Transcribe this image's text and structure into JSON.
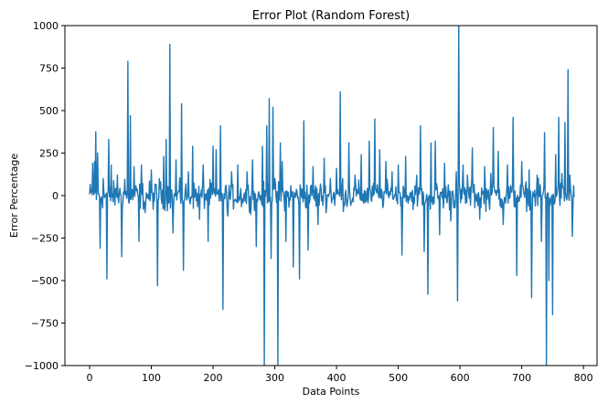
{
  "chart_data": {
    "type": "line",
    "title": "Error Plot (Random Forest)",
    "xlabel": "Data Points",
    "ylabel": "Error Percentage",
    "xlim": [
      -40,
      822
    ],
    "ylim": [
      -1000,
      1000
    ],
    "xticks": [
      0,
      100,
      200,
      300,
      400,
      500,
      600,
      700,
      800
    ],
    "yticks": [
      -1000,
      -750,
      -500,
      -250,
      0,
      250,
      500,
      750,
      1000
    ],
    "xtick_labels": [
      "0",
      "100",
      "200",
      "300",
      "400",
      "500",
      "600",
      "700",
      "800"
    ],
    "ytick_labels": [
      "−1000",
      "−750",
      "−500",
      "−250",
      "0",
      "250",
      "500",
      "750",
      "1000"
    ],
    "grid": false,
    "legend": "none",
    "series": [
      {
        "color": "#1f77b4",
        "x_start": 0,
        "x_step": 1,
        "noise_amplitude": 60,
        "n_points": 786,
        "spikes": [
          [
            5,
            190
          ],
          [
            8,
            200
          ],
          [
            10,
            375
          ],
          [
            13,
            250
          ],
          [
            17,
            -310
          ],
          [
            22,
            100
          ],
          [
            28,
            -490
          ],
          [
            31,
            330
          ],
          [
            35,
            180
          ],
          [
            45,
            120
          ],
          [
            52,
            -360
          ],
          [
            57,
            95
          ],
          [
            62,
            790
          ],
          [
            66,
            470
          ],
          [
            72,
            170
          ],
          [
            80,
            -270
          ],
          [
            84,
            180
          ],
          [
            90,
            -100
          ],
          [
            100,
            150
          ],
          [
            110,
            -530
          ],
          [
            113,
            100
          ],
          [
            120,
            230
          ],
          [
            124,
            330
          ],
          [
            130,
            890
          ],
          [
            135,
            -220
          ],
          [
            140,
            210
          ],
          [
            149,
            540
          ],
          [
            152,
            -440
          ],
          [
            160,
            140
          ],
          [
            167,
            290
          ],
          [
            178,
            -140
          ],
          [
            184,
            180
          ],
          [
            192,
            -270
          ],
          [
            200,
            290
          ],
          [
            205,
            270
          ],
          [
            212,
            410
          ],
          [
            216,
            -670
          ],
          [
            224,
            -120
          ],
          [
            230,
            140
          ],
          [
            240,
            180
          ],
          [
            255,
            140
          ],
          [
            264,
            210
          ],
          [
            270,
            -300
          ],
          [
            280,
            290
          ],
          [
            283,
            -1000
          ],
          [
            287,
            410
          ],
          [
            291,
            570
          ],
          [
            294,
            -370
          ],
          [
            297,
            520
          ],
          [
            300,
            100
          ],
          [
            305,
            -1000
          ],
          [
            309,
            310
          ],
          [
            312,
            200
          ],
          [
            318,
            -270
          ],
          [
            330,
            -420
          ],
          [
            340,
            -490
          ],
          [
            347,
            440
          ],
          [
            354,
            -320
          ],
          [
            362,
            170
          ],
          [
            370,
            -170
          ],
          [
            380,
            220
          ],
          [
            390,
            100
          ],
          [
            400,
            160
          ],
          [
            406,
            610
          ],
          [
            410,
            100
          ],
          [
            420,
            310
          ],
          [
            430,
            120
          ],
          [
            440,
            240
          ],
          [
            453,
            320
          ],
          [
            462,
            450
          ],
          [
            470,
            270
          ],
          [
            480,
            200
          ],
          [
            490,
            140
          ],
          [
            500,
            180
          ],
          [
            506,
            -350
          ],
          [
            512,
            230
          ],
          [
            530,
            120
          ],
          [
            536,
            410
          ],
          [
            542,
            -330
          ],
          [
            548,
            -580
          ],
          [
            553,
            310
          ],
          [
            560,
            320
          ],
          [
            567,
            -230
          ],
          [
            575,
            190
          ],
          [
            585,
            -150
          ],
          [
            594,
            140
          ],
          [
            596,
            -620
          ],
          [
            598,
            1000
          ],
          [
            605,
            180
          ],
          [
            612,
            120
          ],
          [
            620,
            280
          ],
          [
            632,
            -140
          ],
          [
            640,
            170
          ],
          [
            650,
            130
          ],
          [
            654,
            400
          ],
          [
            662,
            260
          ],
          [
            670,
            -170
          ],
          [
            677,
            180
          ],
          [
            686,
            460
          ],
          [
            692,
            -470
          ],
          [
            700,
            200
          ],
          [
            712,
            150
          ],
          [
            716,
            -600
          ],
          [
            725,
            120
          ],
          [
            732,
            -270
          ],
          [
            737,
            370
          ],
          [
            740,
            -1000
          ],
          [
            744,
            -500
          ],
          [
            750,
            -700
          ],
          [
            755,
            240
          ],
          [
            760,
            460
          ],
          [
            765,
            130
          ],
          [
            770,
            430
          ],
          [
            775,
            740
          ],
          [
            778,
            120
          ],
          [
            782,
            -240
          ],
          [
            786,
            10
          ]
        ]
      }
    ]
  }
}
